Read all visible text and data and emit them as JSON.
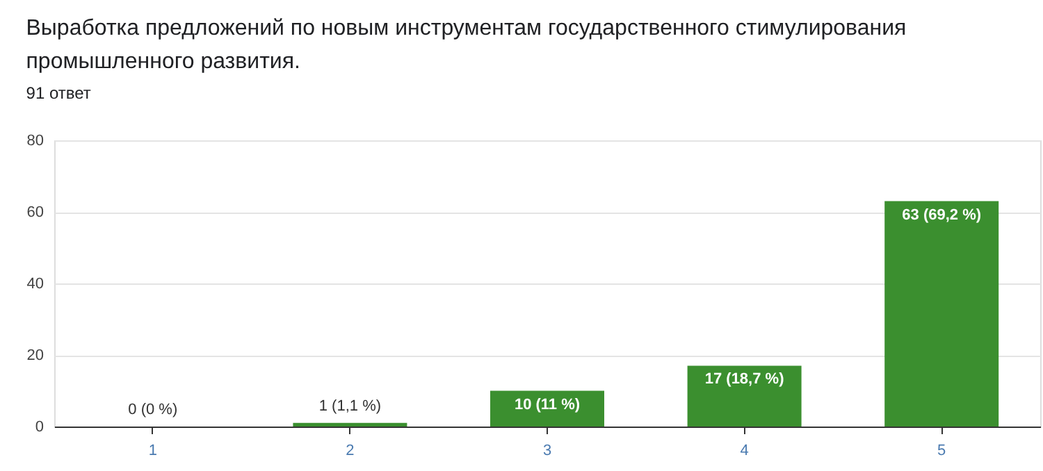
{
  "chart_data": {
    "type": "bar",
    "title": "Выработка предложений по новым инструментам государственного стимулирования промышленного развития.",
    "subtitle": "91 ответ",
    "categories": [
      "1",
      "2",
      "3",
      "4",
      "5"
    ],
    "values": [
      0,
      1,
      10,
      17,
      63
    ],
    "color": "#3b8f2f",
    "value_labels": [
      "0 (0 %)",
      "1 (1,1 %)",
      "10 (11 %)",
      "17 (18,7 %)",
      "63 (69,2 %)"
    ],
    "ylim": [
      0,
      80
    ],
    "yticks": [
      0,
      20,
      40,
      60,
      80
    ],
    "grid": "y"
  }
}
